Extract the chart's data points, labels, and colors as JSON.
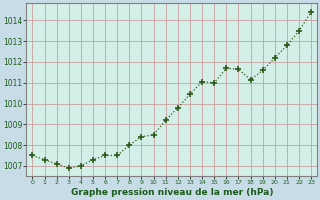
{
  "x": [
    0,
    1,
    2,
    3,
    4,
    5,
    6,
    7,
    8,
    9,
    10,
    11,
    12,
    13,
    14,
    15,
    16,
    17,
    18,
    19,
    20,
    21,
    22,
    23
  ],
  "y": [
    1007.5,
    1007.3,
    1007.1,
    1006.9,
    1007.0,
    1007.3,
    1007.5,
    1007.5,
    1008.0,
    1008.4,
    1008.5,
    1009.2,
    1009.8,
    1010.45,
    1011.05,
    1011.0,
    1011.7,
    1011.65,
    1011.15,
    1011.6,
    1012.2,
    1012.8,
    1013.5,
    1014.4
  ],
  "line_color": "#2d5a1b",
  "marker": "+",
  "marker_size": 4,
  "bg_color": "#cce8d4",
  "plot_bg_color": "#d4eee8",
  "grid_color": "#c8a0a0",
  "xlabel": "Graphe pression niveau de la mer (hPa)",
  "xlabel_color": "#1a5c1a",
  "ylabel_ticks": [
    1007,
    1008,
    1009,
    1010,
    1011,
    1012,
    1013,
    1014
  ],
  "ylim": [
    1006.5,
    1014.85
  ],
  "xlim": [
    -0.5,
    23.5
  ],
  "xtick_labels": [
    "0",
    "1",
    "2",
    "3",
    "4",
    "5",
    "6",
    "7",
    "8",
    "9",
    "10",
    "11",
    "12",
    "13",
    "14",
    "15",
    "16",
    "17",
    "18",
    "19",
    "20",
    "21",
    "22",
    "23"
  ],
  "tick_color": "#1a5c1a",
  "spine_color": "#808080",
  "fig_bg": "#c8dce8"
}
